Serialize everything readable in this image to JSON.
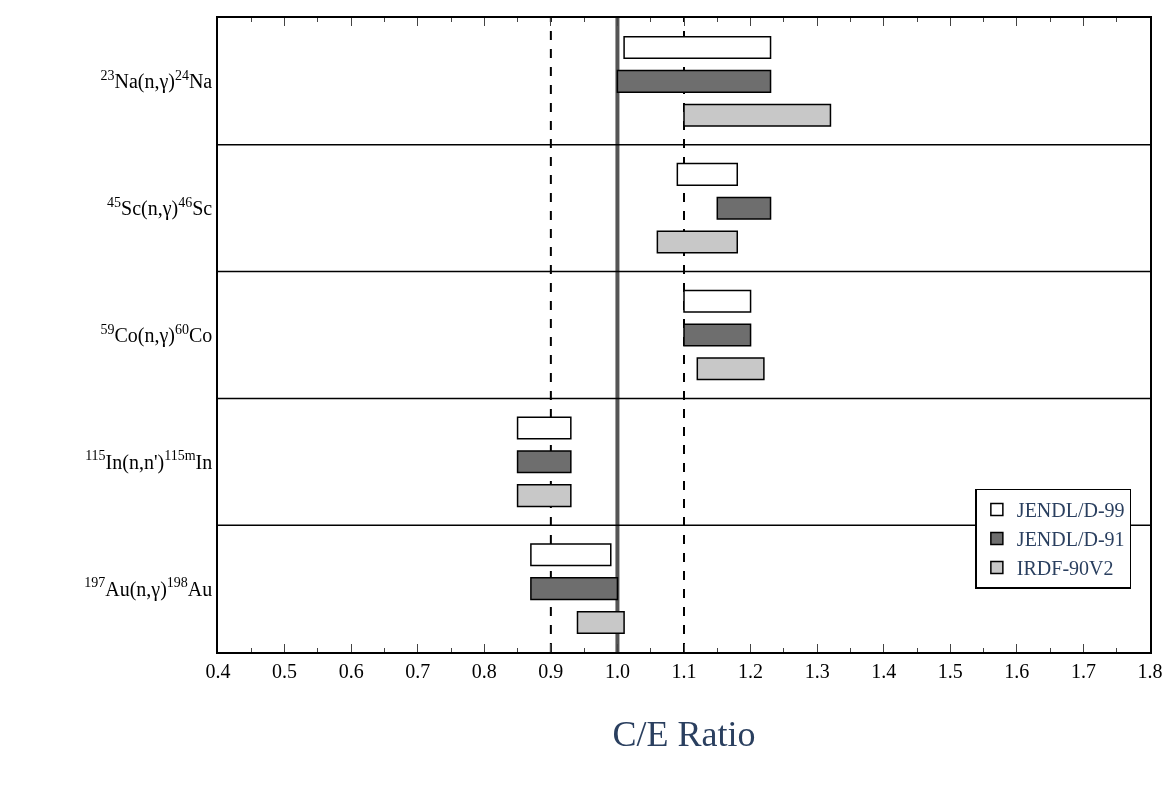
{
  "chart_data": {
    "type": "bar",
    "orientation": "horizontal",
    "xlabel": "C/E Ratio",
    "categories": [
      "$^{23}$Na(n,γ)$^{24}$Na",
      "$^{45}$Sc(n,γ)$^{46}$Sc",
      "$^{59}$Co(n,γ)$^{60}$Co",
      "$^{115}$In(n,n')$^{115m}$In",
      "$^{197}$Au(n,γ)$^{198}$Au"
    ],
    "series": [
      {
        "name": "JENDL/D-99",
        "color": "#ffffff",
        "base": [
          1.01,
          1.09,
          1.1,
          0.85,
          0.87
        ],
        "values": [
          0.22,
          0.09,
          0.1,
          0.08,
          0.12
        ]
      },
      {
        "name": "JENDL/D-91",
        "color": "#6e6e6e",
        "base": [
          1.0,
          1.15,
          1.1,
          0.85,
          0.87
        ],
        "values": [
          0.23,
          0.08,
          0.1,
          0.08,
          0.13
        ]
      },
      {
        "name": "IRDF-90V2",
        "color": "#c8c8c8",
        "base": [
          1.1,
          1.06,
          1.12,
          0.85,
          0.94
        ],
        "values": [
          0.22,
          0.12,
          0.1,
          0.08,
          0.07
        ]
      }
    ],
    "xlim": [
      0.4,
      1.8
    ],
    "xticks": [
      {
        "value": 0.4,
        "label": "0.4"
      },
      {
        "value": 0.5,
        "label": "0.5"
      },
      {
        "value": 0.6,
        "label": "0.6"
      },
      {
        "value": 0.7,
        "label": "0.7"
      },
      {
        "value": 0.8,
        "label": "0.8"
      },
      {
        "value": 0.9,
        "label": "0.9"
      },
      {
        "value": 1.0,
        "label": "1.0"
      },
      {
        "value": 1.1,
        "label": "1.1"
      },
      {
        "value": 1.2,
        "label": "1.2"
      },
      {
        "value": 1.3,
        "label": "1.3"
      },
      {
        "value": 1.4,
        "label": "1.4"
      },
      {
        "value": 1.5,
        "label": "1.5"
      },
      {
        "value": 1.6,
        "label": "1.6"
      },
      {
        "value": 1.7,
        "label": "1.7"
      },
      {
        "value": 1.8,
        "label": "1.8"
      }
    ],
    "ref_lines": [
      {
        "axis": "x",
        "value": 0.9,
        "line_style": "dashed",
        "color": "#000000"
      },
      {
        "axis": "x",
        "value": 1.1,
        "line_style": "dashed",
        "color": "#000000"
      },
      {
        "axis": "x",
        "value": 1.0,
        "line_style": "solid",
        "color": "#555555"
      }
    ],
    "grid": false,
    "legend": "bottom right"
  }
}
